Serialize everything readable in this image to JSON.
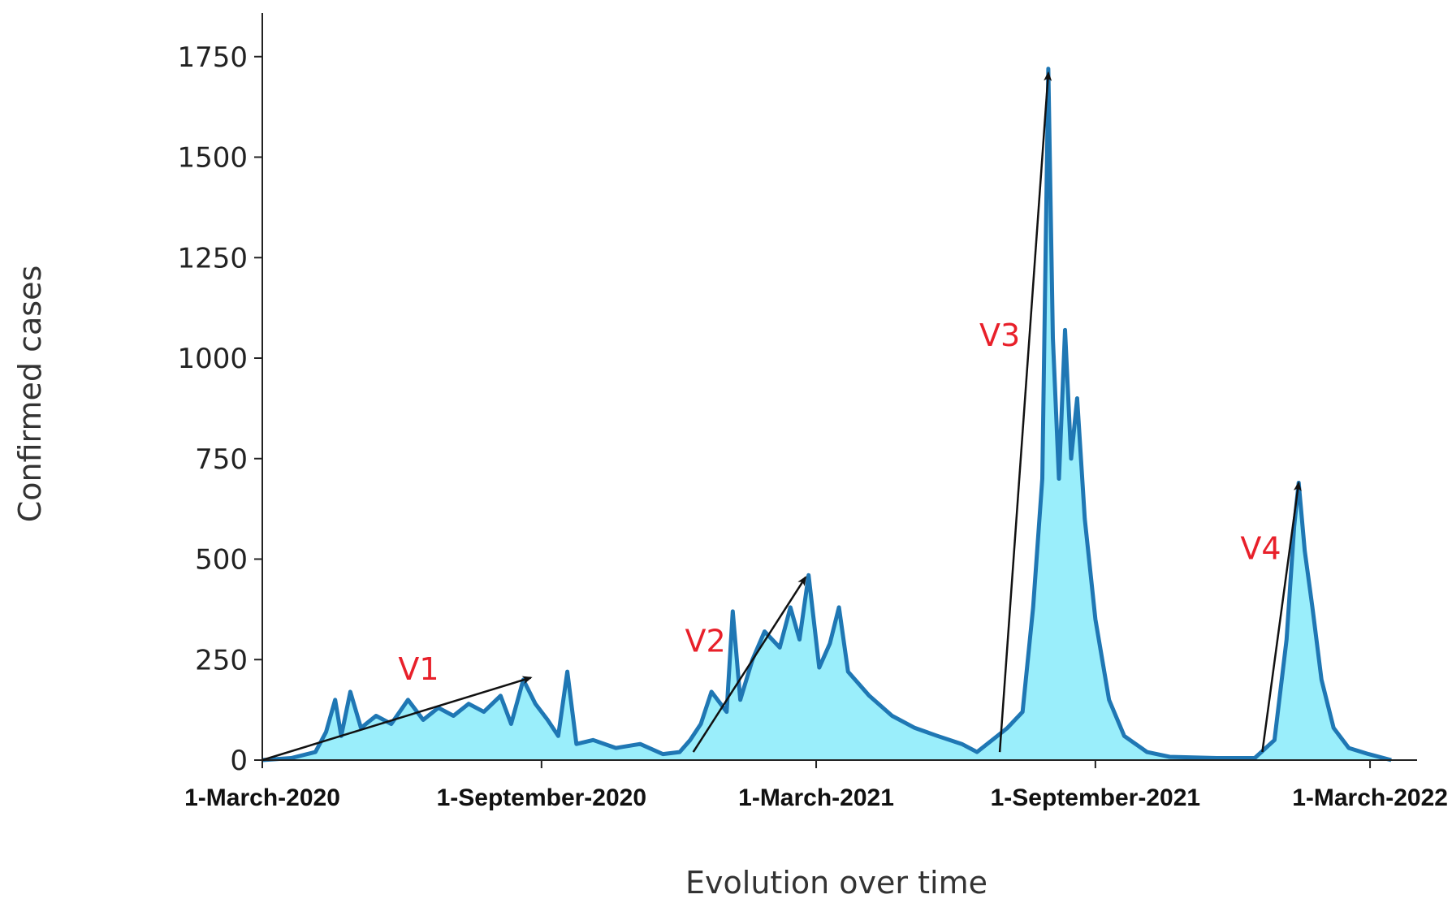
{
  "chart_data": {
    "type": "area",
    "title": "",
    "xlabel": "Evolution over time",
    "ylabel": "Confirmed cases",
    "ylim": [
      0,
      1800
    ],
    "yticks": [
      0,
      250,
      500,
      750,
      1000,
      1250,
      1500,
      1750
    ],
    "xlim": [
      "2020-03-01",
      "2022-04-01"
    ],
    "xticks": [
      {
        "date": "2020-03-01",
        "label": "1-March-2020"
      },
      {
        "date": "2020-09-01",
        "label": "1-September-2020"
      },
      {
        "date": "2021-03-01",
        "label": "1-March-2021"
      },
      {
        "date": "2021-09-01",
        "label": "1-September-2021"
      },
      {
        "date": "2022-03-01",
        "label": "1-March-2022"
      }
    ],
    "grid": false,
    "colors": {
      "line": "#1f77b4",
      "fill": "#9aeefb",
      "annotation": "#e8202a",
      "arrow": "#111111"
    },
    "series": [
      {
        "values": [
          [
            "2020-03-01",
            0
          ],
          [
            "2020-03-20",
            5
          ],
          [
            "2020-04-05",
            20
          ],
          [
            "2020-04-12",
            70
          ],
          [
            "2020-04-18",
            150
          ],
          [
            "2020-04-22",
            60
          ],
          [
            "2020-04-28",
            170
          ],
          [
            "2020-05-05",
            80
          ],
          [
            "2020-05-15",
            110
          ],
          [
            "2020-05-25",
            90
          ],
          [
            "2020-06-05",
            150
          ],
          [
            "2020-06-15",
            100
          ],
          [
            "2020-06-25",
            130
          ],
          [
            "2020-07-05",
            110
          ],
          [
            "2020-07-15",
            140
          ],
          [
            "2020-07-25",
            120
          ],
          [
            "2020-08-05",
            160
          ],
          [
            "2020-08-12",
            90
          ],
          [
            "2020-08-20",
            200
          ],
          [
            "2020-08-28",
            140
          ],
          [
            "2020-09-05",
            100
          ],
          [
            "2020-09-12",
            60
          ],
          [
            "2020-09-18",
            220
          ],
          [
            "2020-09-24",
            40
          ],
          [
            "2020-10-05",
            50
          ],
          [
            "2020-10-20",
            30
          ],
          [
            "2020-11-05",
            40
          ],
          [
            "2020-11-20",
            15
          ],
          [
            "2020-12-01",
            20
          ],
          [
            "2020-12-08",
            50
          ],
          [
            "2020-12-15",
            90
          ],
          [
            "2020-12-22",
            170
          ],
          [
            "2021-01-01",
            120
          ],
          [
            "2021-01-05",
            370
          ],
          [
            "2021-01-10",
            150
          ],
          [
            "2021-01-18",
            250
          ],
          [
            "2021-01-26",
            320
          ],
          [
            "2021-02-05",
            280
          ],
          [
            "2021-02-12",
            380
          ],
          [
            "2021-02-18",
            300
          ],
          [
            "2021-02-24",
            460
          ],
          [
            "2021-03-03",
            230
          ],
          [
            "2021-03-10",
            290
          ],
          [
            "2021-03-16",
            380
          ],
          [
            "2021-03-22",
            220
          ],
          [
            "2021-04-05",
            160
          ],
          [
            "2021-04-20",
            110
          ],
          [
            "2021-05-05",
            80
          ],
          [
            "2021-05-20",
            60
          ],
          [
            "2021-06-05",
            40
          ],
          [
            "2021-06-15",
            20
          ],
          [
            "2021-06-25",
            50
          ],
          [
            "2021-07-05",
            80
          ],
          [
            "2021-07-15",
            120
          ],
          [
            "2021-07-22",
            380
          ],
          [
            "2021-07-28",
            700
          ],
          [
            "2021-08-01",
            1720
          ],
          [
            "2021-08-04",
            1050
          ],
          [
            "2021-08-08",
            700
          ],
          [
            "2021-08-12",
            1070
          ],
          [
            "2021-08-16",
            750
          ],
          [
            "2021-08-20",
            900
          ],
          [
            "2021-08-25",
            600
          ],
          [
            "2021-09-01",
            350
          ],
          [
            "2021-09-10",
            150
          ],
          [
            "2021-09-20",
            60
          ],
          [
            "2021-10-05",
            20
          ],
          [
            "2021-10-20",
            8
          ],
          [
            "2021-11-20",
            5
          ],
          [
            "2021-12-15",
            5
          ],
          [
            "2021-12-28",
            50
          ],
          [
            "2022-01-05",
            300
          ],
          [
            "2022-01-10",
            580
          ],
          [
            "2022-01-13",
            690
          ],
          [
            "2022-01-17",
            520
          ],
          [
            "2022-01-22",
            380
          ],
          [
            "2022-01-28",
            200
          ],
          [
            "2022-02-05",
            80
          ],
          [
            "2022-02-15",
            30
          ],
          [
            "2022-02-28",
            15
          ],
          [
            "2022-03-15",
            0
          ]
        ]
      }
    ],
    "annotations": [
      {
        "label": "V1",
        "label_at": [
          "2020-06-12",
          200
        ],
        "arrow_from": [
          "2020-03-01",
          0
        ],
        "arrow_to": [
          "2020-08-25",
          205
        ]
      },
      {
        "label": "V2",
        "label_at": [
          "2020-12-18",
          270
        ],
        "arrow_from": [
          "2020-12-10",
          20
        ],
        "arrow_to": [
          "2021-02-22",
          455
        ]
      },
      {
        "label": "V3",
        "label_at": [
          "2021-06-30",
          1030
        ],
        "arrow_from": [
          "2021-06-30",
          20
        ],
        "arrow_to": [
          "2021-08-01",
          1710
        ]
      },
      {
        "label": "V4",
        "label_at": [
          "2021-12-19",
          500
        ],
        "arrow_from": [
          "2021-12-20",
          20
        ],
        "arrow_to": [
          "2022-01-13",
          690
        ]
      }
    ]
  }
}
